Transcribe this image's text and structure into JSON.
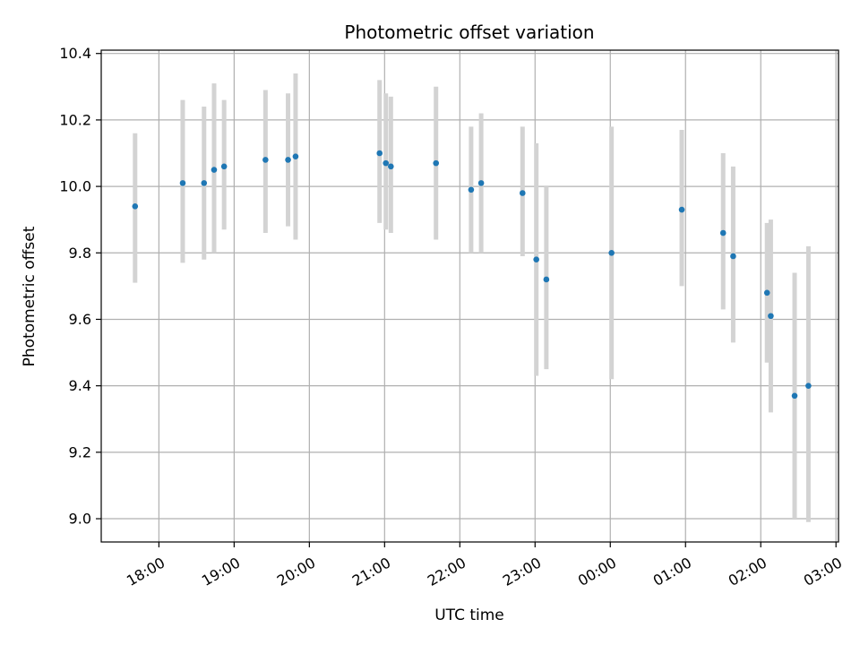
{
  "chart_data": {
    "type": "scatter",
    "title": "Photometric offset variation",
    "xlabel": "UTC time",
    "ylabel": "Photometric offset",
    "x_ticks": [
      "18:00",
      "19:00",
      "20:00",
      "21:00",
      "22:00",
      "23:00",
      "00:00",
      "01:00",
      "02:00",
      "03:00"
    ],
    "x_tick_hours": [
      18,
      19,
      20,
      21,
      22,
      23,
      24,
      25,
      26,
      27
    ],
    "y_ticks": [
      "9.0",
      "9.2",
      "9.4",
      "9.6",
      "9.8",
      "10.0",
      "10.2",
      "10.4"
    ],
    "y_tick_values": [
      9.0,
      9.2,
      9.4,
      9.6,
      9.8,
      10.0,
      10.2,
      10.4
    ],
    "xlim": [
      "17:14",
      "03:02"
    ],
    "ylim": [
      8.93,
      10.41
    ],
    "grid": true,
    "marker_color": "#1f77b4",
    "errorbar_color": "#d3d3d3",
    "points": [
      {
        "time": "17:41",
        "y": 9.94,
        "ylow": 9.71,
        "yhigh": 10.16
      },
      {
        "time": "18:19",
        "y": 10.01,
        "ylow": 9.77,
        "yhigh": 10.26
      },
      {
        "time": "18:36",
        "y": 10.01,
        "ylow": 9.78,
        "yhigh": 10.24
      },
      {
        "time": "18:44",
        "y": 10.05,
        "ylow": 9.8,
        "yhigh": 10.31
      },
      {
        "time": "18:52",
        "y": 10.06,
        "ylow": 9.87,
        "yhigh": 10.26
      },
      {
        "time": "19:25",
        "y": 10.08,
        "ylow": 9.86,
        "yhigh": 10.29
      },
      {
        "time": "19:43",
        "y": 10.08,
        "ylow": 9.88,
        "yhigh": 10.28
      },
      {
        "time": "19:49",
        "y": 10.09,
        "ylow": 9.84,
        "yhigh": 10.34
      },
      {
        "time": "20:56",
        "y": 10.1,
        "ylow": 9.89,
        "yhigh": 10.32
      },
      {
        "time": "21:01",
        "y": 10.07,
        "ylow": 9.87,
        "yhigh": 10.28
      },
      {
        "time": "21:05",
        "y": 10.06,
        "ylow": 9.86,
        "yhigh": 10.27
      },
      {
        "time": "21:41",
        "y": 10.07,
        "ylow": 9.84,
        "yhigh": 10.3
      },
      {
        "time": "22:09",
        "y": 9.99,
        "ylow": 9.8,
        "yhigh": 10.18
      },
      {
        "time": "22:17",
        "y": 10.01,
        "ylow": 9.8,
        "yhigh": 10.22
      },
      {
        "time": "22:50",
        "y": 9.98,
        "ylow": 9.79,
        "yhigh": 10.18
      },
      {
        "time": "23:01",
        "y": 9.78,
        "ylow": 9.43,
        "yhigh": 10.13
      },
      {
        "time": "23:09",
        "y": 9.72,
        "ylow": 9.45,
        "yhigh": 10.0
      },
      {
        "time": "00:01",
        "y": 9.8,
        "ylow": 9.42,
        "yhigh": 10.18
      },
      {
        "time": "00:57",
        "y": 9.93,
        "ylow": 9.7,
        "yhigh": 10.17
      },
      {
        "time": "01:30",
        "y": 9.86,
        "ylow": 9.63,
        "yhigh": 10.1
      },
      {
        "time": "01:38",
        "y": 9.79,
        "ylow": 9.53,
        "yhigh": 10.06
      },
      {
        "time": "02:05",
        "y": 9.68,
        "ylow": 9.47,
        "yhigh": 9.89
      },
      {
        "time": "02:08",
        "y": 9.61,
        "ylow": 9.32,
        "yhigh": 9.9
      },
      {
        "time": "02:27",
        "y": 9.37,
        "ylow": 9.0,
        "yhigh": 9.74
      },
      {
        "time": "02:38",
        "y": 9.4,
        "ylow": 8.99,
        "yhigh": 9.82
      }
    ]
  }
}
